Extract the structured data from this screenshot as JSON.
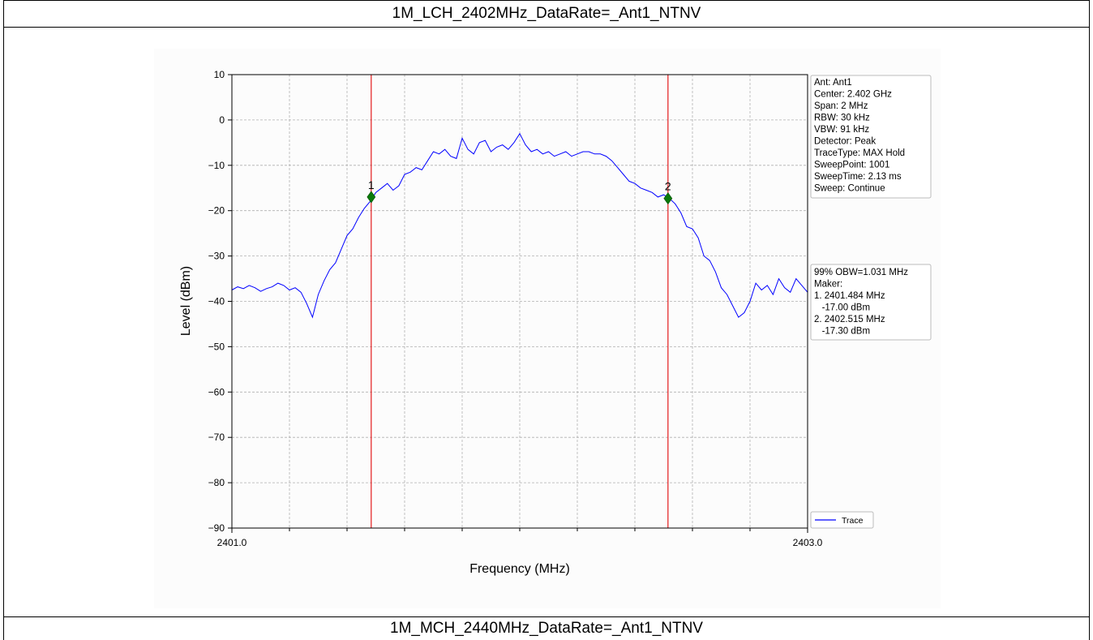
{
  "header": {
    "top_title": "1M_LCH_2402MHz_DataRate=_Ant1_NTNV",
    "bottom_title": "1M_MCH_2440MHz_DataRate=_Ant1_NTNV"
  },
  "info_box": {
    "lines": [
      "Ant: Ant1",
      "Center: 2.402 GHz",
      "Span: 2 MHz",
      "RBW: 30 kHz",
      "VBW: 91 kHz",
      "Detector: Peak",
      "TraceType: MAX Hold",
      "SweepPoint: 1001",
      "SweepTime: 2.13 ms",
      "Sweep: Continue"
    ]
  },
  "result_box": {
    "lines": [
      "99% OBW=1.031 MHz",
      "Maker:",
      "1. 2401.484 MHz",
      "   -17.00 dBm",
      "2. 2402.515 MHz",
      "   -17.30 dBm"
    ]
  },
  "chart_data": {
    "type": "line",
    "title": "",
    "xlabel": "Frequency (MHz)",
    "ylabel": "Level (dBm)",
    "xlim": [
      2401.0,
      2403.0
    ],
    "ylim": [
      -90,
      10
    ],
    "x_tick_labels": [
      "2401.0",
      "2403.0"
    ],
    "x_minor_ticks": [
      2401.2,
      2401.4,
      2401.6,
      2401.8,
      2402.0,
      2402.2,
      2402.4,
      2402.6,
      2402.8
    ],
    "y_ticks": [
      10,
      0,
      -10,
      -20,
      -30,
      -40,
      -50,
      -60,
      -70,
      -80,
      -90
    ],
    "grid": true,
    "legend": {
      "position": "bottom-right",
      "entries": [
        "Trace"
      ]
    },
    "series": [
      {
        "name": "Trace",
        "color": "#0000ff",
        "x": [
          2401.0,
          2401.02,
          2401.04,
          2401.06,
          2401.08,
          2401.1,
          2401.12,
          2401.14,
          2401.16,
          2401.18,
          2401.2,
          2401.22,
          2401.24,
          2401.26,
          2401.28,
          2401.3,
          2401.32,
          2401.34,
          2401.36,
          2401.38,
          2401.4,
          2401.42,
          2401.44,
          2401.46,
          2401.48,
          2401.5,
          2401.52,
          2401.54,
          2401.56,
          2401.58,
          2401.6,
          2401.62,
          2401.64,
          2401.66,
          2401.68,
          2401.7,
          2401.72,
          2401.74,
          2401.76,
          2401.78,
          2401.8,
          2401.82,
          2401.84,
          2401.86,
          2401.88,
          2401.9,
          2401.92,
          2401.94,
          2401.96,
          2401.98,
          2402.0,
          2402.02,
          2402.04,
          2402.06,
          2402.08,
          2402.1,
          2402.12,
          2402.14,
          2402.16,
          2402.18,
          2402.2,
          2402.22,
          2402.24,
          2402.26,
          2402.28,
          2402.3,
          2402.32,
          2402.34,
          2402.36,
          2402.38,
          2402.4,
          2402.42,
          2402.44,
          2402.46,
          2402.48,
          2402.5,
          2402.52,
          2402.54,
          2402.56,
          2402.58,
          2402.6,
          2402.62,
          2402.64,
          2402.66,
          2402.68,
          2402.7,
          2402.72,
          2402.74,
          2402.76,
          2402.78,
          2402.8,
          2402.82,
          2402.84,
          2402.86,
          2402.88,
          2402.9,
          2402.92,
          2402.94,
          2402.96,
          2402.98,
          2403.0
        ],
        "y": [
          -37.5,
          -36.8,
          -37.2,
          -36.5,
          -37.0,
          -37.8,
          -37.2,
          -36.8,
          -36.0,
          -36.5,
          -37.5,
          -37.0,
          -38.0,
          -40.5,
          -43.5,
          -38.5,
          -35.5,
          -33.0,
          -31.5,
          -28.5,
          -25.5,
          -24.0,
          -21.5,
          -19.5,
          -18.0,
          -16.0,
          -15.0,
          -14.0,
          -15.5,
          -14.5,
          -12.0,
          -11.5,
          -10.5,
          -11.0,
          -9.0,
          -7.0,
          -7.5,
          -6.5,
          -8.0,
          -8.5,
          -4.0,
          -6.5,
          -7.5,
          -5.0,
          -4.5,
          -7.0,
          -6.0,
          -5.5,
          -6.5,
          -5.0,
          -3.0,
          -5.5,
          -7.0,
          -6.5,
          -7.5,
          -7.0,
          -8.0,
          -7.5,
          -7.0,
          -8.0,
          -7.5,
          -7.0,
          -7.0,
          -7.5,
          -7.5,
          -8.0,
          -9.0,
          -10.5,
          -12.0,
          -13.5,
          -14.0,
          -15.0,
          -15.5,
          -16.0,
          -17.0,
          -16.5,
          -17.3,
          -18.5,
          -20.5,
          -23.5,
          -24.0,
          -26.0,
          -30.0,
          -31.0,
          -33.5,
          -37.0,
          -38.5,
          -41.0,
          -43.5,
          -42.5,
          -40.0,
          -36.0,
          -37.5,
          -36.5,
          -38.5,
          -35.0,
          -37.0,
          -38.0,
          -35.0,
          -36.5,
          -38.0
        ]
      }
    ],
    "markers": [
      {
        "label": "1",
        "x": 2401.484,
        "y": -17.0,
        "color": "#0a7a0a"
      },
      {
        "label": "2",
        "x": 2402.515,
        "y": -17.3,
        "color": "#0a7a0a"
      }
    ],
    "vlines": [
      {
        "x": 2401.484,
        "color": "#e31a1c"
      },
      {
        "x": 2402.515,
        "color": "#e31a1c"
      }
    ],
    "obw": "1.031 MHz"
  }
}
